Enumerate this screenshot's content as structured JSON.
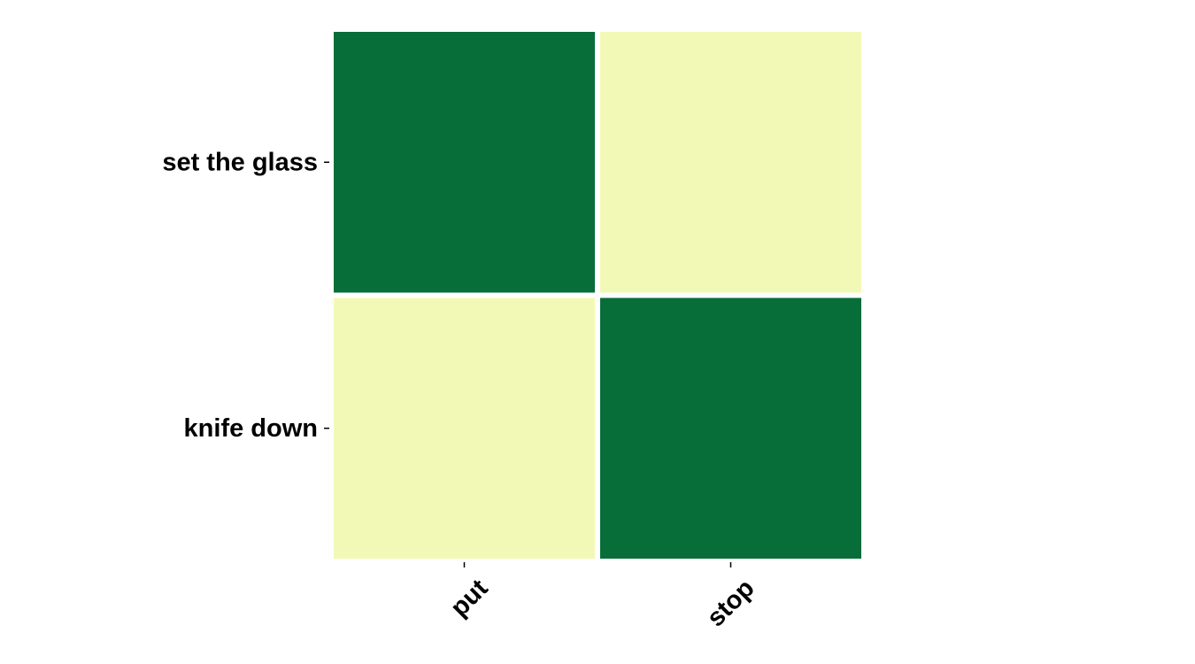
{
  "chart_data": {
    "type": "heatmap",
    "title": "",
    "xlabel": "",
    "ylabel": "",
    "x_categories": [
      "put",
      "stop"
    ],
    "y_categories": [
      "set the glass",
      "knife down"
    ],
    "values": [
      [
        1,
        0
      ],
      [
        0,
        1
      ]
    ],
    "colorscale": {
      "low": "#f2f9b6",
      "high": "#076d39"
    },
    "grid": false,
    "legend": "none"
  }
}
